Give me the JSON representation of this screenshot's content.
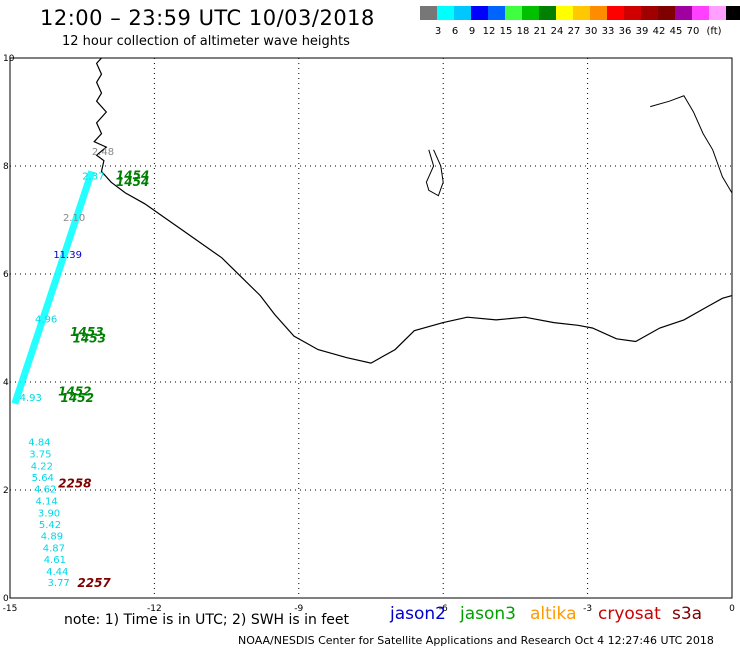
{
  "header": {
    "title": "12:00 – 23:59 UTC 10/03/2018",
    "subtitle": "12 hour collection of altimeter wave heights"
  },
  "scale": {
    "unit": "(ft)",
    "colors": [
      "#777777",
      "#00ffff",
      "#00c8ff",
      "#0000ff",
      "#0064ff",
      "#40ff40",
      "#00c000",
      "#008000",
      "#ffff00",
      "#ffc800",
      "#ff8c00",
      "#ff0000",
      "#d00000",
      "#a00000",
      "#800000",
      "#a000a0",
      "#ff40ff",
      "#ffa0ff",
      "#000000"
    ],
    "labels": [
      "3",
      "6",
      "9",
      "12",
      "15",
      "18",
      "21",
      "24",
      "27",
      "30",
      "33",
      "36",
      "39",
      "42",
      "45",
      "70"
    ]
  },
  "axes": {
    "x_ticks": [
      "-15",
      "-12",
      "-9",
      "-6",
      "-3",
      "0"
    ],
    "y_ticks": [
      "0",
      "2",
      "4",
      "6",
      "8",
      "10"
    ]
  },
  "map": {
    "wave_labels_visible": [
      {
        "v": "4.84",
        "lon": -14.62,
        "lat": 2.82
      },
      {
        "v": "3.75",
        "lon": -14.6,
        "lat": 2.6
      },
      {
        "v": "4.22",
        "lon": -14.57,
        "lat": 2.38
      },
      {
        "v": "5.64",
        "lon": -14.55,
        "lat": 2.17
      },
      {
        "v": "4.62",
        "lon": -14.5,
        "lat": 1.95
      },
      {
        "v": "4.14",
        "lon": -14.47,
        "lat": 1.73
      },
      {
        "v": "3.90",
        "lon": -14.42,
        "lat": 1.51
      },
      {
        "v": "5.42",
        "lon": -14.4,
        "lat": 1.3
      },
      {
        "v": "4.89",
        "lon": -14.36,
        "lat": 1.08
      },
      {
        "v": "4.87",
        "lon": -14.32,
        "lat": 0.86
      },
      {
        "v": "4.61",
        "lon": -14.3,
        "lat": 0.65
      },
      {
        "v": "4.44",
        "lon": -14.25,
        "lat": 0.43
      },
      {
        "v": "3.77",
        "lon": -14.22,
        "lat": 0.22
      },
      {
        "v": "4.96",
        "lon": -14.48,
        "lat": 5.1
      },
      {
        "v": "11.39",
        "lon": -14.1,
        "lat": 6.3
      },
      {
        "v": "2.10",
        "lon": -13.9,
        "lat": 6.98
      },
      {
        "v": "4.93",
        "lon": -14.8,
        "lat": 3.65
      },
      {
        "v": "2.37",
        "lon": -13.5,
        "lat": 7.75
      },
      {
        "v": "2.48",
        "lon": -13.3,
        "lat": 8.2
      }
    ],
    "time_labels": [
      {
        "v": "1454",
        "lon": -12.8,
        "lat": 7.75
      },
      {
        "v": "1454",
        "lon": -12.8,
        "lat": 7.63
      },
      {
        "v": "1453",
        "lon": -13.75,
        "lat": 4.85
      },
      {
        "v": "1453",
        "lon": -13.7,
        "lat": 4.73
      },
      {
        "v": "1452",
        "lon": -14.0,
        "lat": 3.75
      },
      {
        "v": "1452",
        "lon": -13.95,
        "lat": 3.63
      },
      {
        "v": "2258",
        "lon": -14.0,
        "lat": 2.05
      },
      {
        "v": "2257",
        "lon": -13.6,
        "lat": 0.2
      }
    ]
  },
  "note": "note:  1) Time is in UTC;  2) SWH is in feet",
  "legend": [
    {
      "name": "jason2",
      "color": "#0000cc"
    },
    {
      "name": "jason3",
      "color": "#00a000"
    },
    {
      "name": "altika",
      "color": "#ff9900"
    },
    {
      "name": "cryosat",
      "color": "#cc0000"
    },
    {
      "name": "s3a",
      "color": "#800000"
    }
  ],
  "footer": "NOAA/NESDIS Center for Satellite Applications and Research     Oct  4 12:27:46 UTC 2018"
}
